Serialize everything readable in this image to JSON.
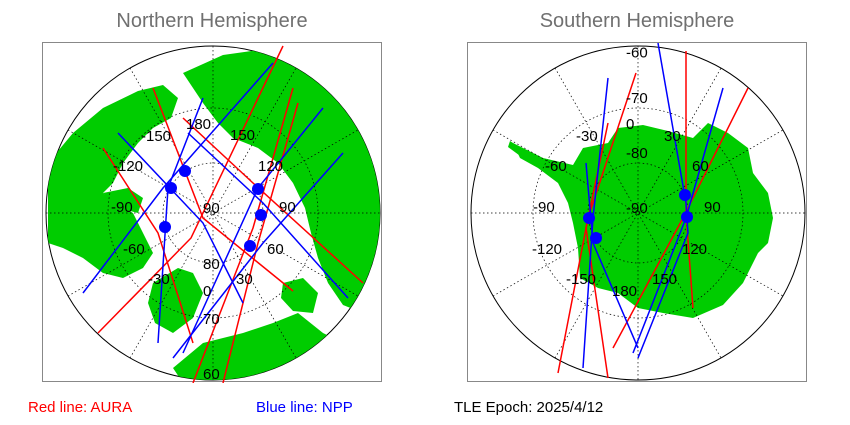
{
  "north": {
    "title": "Northern Hemisphere",
    "lon_labels": [
      "-150",
      "180",
      "150",
      "-120",
      "120",
      "-90",
      "90",
      "-60",
      "60",
      "-30",
      "30",
      "0"
    ],
    "lat_labels": [
      "90",
      "80",
      "70",
      "60"
    ]
  },
  "south": {
    "title": "Southern Hemisphere",
    "lon_labels": [
      "-30",
      "0",
      "30",
      "-60",
      "60",
      "-90",
      "90",
      "-120",
      "120",
      "-150",
      "180",
      "150"
    ],
    "lat_labels": [
      "-60",
      "-70",
      "-80",
      "-90"
    ]
  },
  "legend": {
    "aura": "Red line: AURA",
    "npp": "Blue line: NPP",
    "epoch": "TLE Epoch: 2025/4/12"
  },
  "colors": {
    "land": "#00cc00",
    "ocean": "#ffffff",
    "aura": "#ff0000",
    "npp": "#0000ff",
    "grid": "#000000"
  }
}
